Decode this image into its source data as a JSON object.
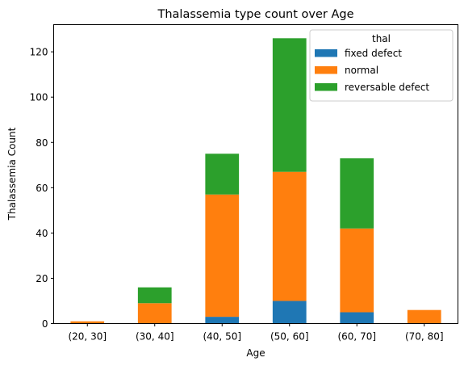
{
  "chart_data": {
    "type": "bar",
    "stacked": true,
    "title": "Thalassemia type count over Age",
    "xlabel": "Age",
    "ylabel": "Thalassemia Count",
    "categories": [
      "(20, 30]",
      "(30, 40]",
      "(40, 50]",
      "(50, 60]",
      "(60, 70]",
      "(70, 80]"
    ],
    "ylim": [
      0,
      132
    ],
    "yticks": [
      0,
      20,
      40,
      60,
      80,
      100,
      120
    ],
    "grid": false,
    "legend": {
      "title": "thal",
      "placement": "top-right"
    },
    "series": [
      {
        "name": "fixed defect",
        "color": "#1f77b4",
        "values": [
          0,
          0,
          3,
          10,
          5,
          0
        ]
      },
      {
        "name": "normal",
        "color": "#ff7f0e",
        "values": [
          1,
          9,
          54,
          57,
          37,
          6
        ]
      },
      {
        "name": "reversable defect",
        "color": "#2ca02c",
        "values": [
          0,
          7,
          18,
          59,
          31,
          0
        ]
      }
    ]
  }
}
